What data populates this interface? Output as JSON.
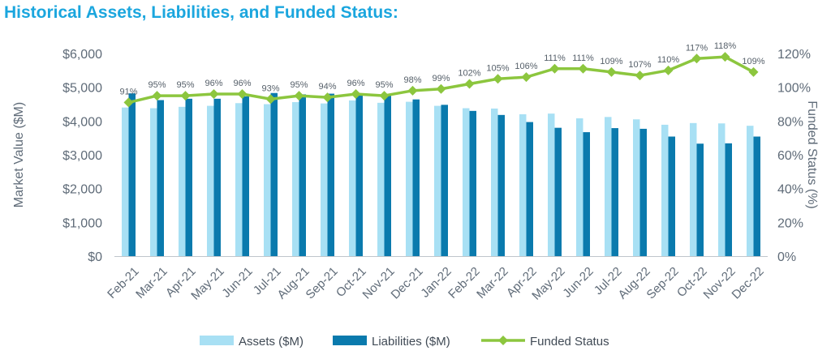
{
  "title": "Historical Assets, Liabilities, and Funded Status:",
  "colors": {
    "title": "#1ba6de",
    "assets": "#a8e0f4",
    "liabilities": "#0a7aad",
    "funded": "#8cc63e"
  },
  "chart_data": {
    "type": "bar",
    "categories": [
      "Feb-21",
      "Mar-21",
      "Apr-21",
      "May-21",
      "Jun-21",
      "Jul-21",
      "Aug-21",
      "Sep-21",
      "Oct-21",
      "Nov-21",
      "Dec-21",
      "Jan-22",
      "Feb-22",
      "Mar-22",
      "Apr-22",
      "May-22",
      "Jun-22",
      "Jul-22",
      "Aug-22",
      "Sep-22",
      "Oct-22",
      "Nov-22",
      "Dec-22"
    ],
    "series": [
      {
        "name": "Assets ($M)",
        "type": "bar",
        "axis": "left",
        "values": [
          4400,
          4380,
          4420,
          4450,
          4530,
          4500,
          4560,
          4520,
          4610,
          4540,
          4570,
          4450,
          4380,
          4370,
          4200,
          4220,
          4080,
          4120,
          4050,
          3890,
          3940,
          3930,
          3860
        ]
      },
      {
        "name": "Liabilities ($M)",
        "type": "bar",
        "axis": "left",
        "values": [
          4820,
          4620,
          4660,
          4660,
          4730,
          4830,
          4790,
          4810,
          4800,
          4790,
          4640,
          4480,
          4300,
          4180,
          3970,
          3800,
          3670,
          3790,
          3770,
          3540,
          3330,
          3340,
          3540
        ]
      },
      {
        "name": "Funded Status",
        "type": "line",
        "axis": "right",
        "values": [
          91,
          95,
          95,
          96,
          96,
          93,
          95,
          94,
          96,
          95,
          98,
          99,
          102,
          105,
          106,
          111,
          111,
          109,
          107,
          110,
          117,
          118,
          109
        ]
      }
    ],
    "data_labels": [
      "91%",
      "95%",
      "95%",
      "96%",
      "96%",
      "93%",
      "95%",
      "94%",
      "96%",
      "95%",
      "98%",
      "99%",
      "102%",
      "105%",
      "106%",
      "111%",
      "111%",
      "109%",
      "107%",
      "110%",
      "117%",
      "118%",
      "109%"
    ],
    "ylabel": "Market Value ($M)",
    "y2label": "Funded Status (%)",
    "ylim": [
      0,
      6000
    ],
    "y2lim": [
      0,
      120
    ],
    "yticks": [
      "$0",
      "$1,000",
      "$2,000",
      "$3,000",
      "$4,000",
      "$5,000",
      "$6,000"
    ],
    "y2ticks": [
      "0%",
      "20%",
      "40%",
      "60%",
      "80%",
      "100%",
      "120%"
    ],
    "legend": [
      "Assets ($M)",
      "Liabilities ($M)",
      "Funded Status"
    ],
    "legend_position": "bottom",
    "grid": false
  }
}
